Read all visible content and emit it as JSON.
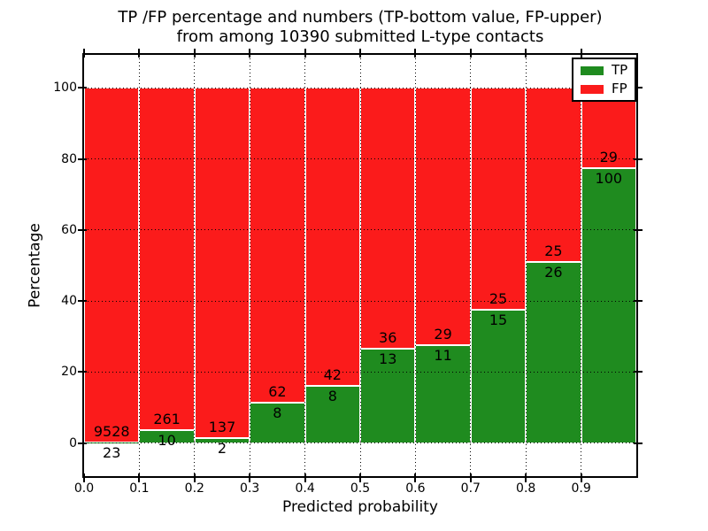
{
  "title": {
    "line1": "TP /FP percentage and numbers (TP-bottom value, FP-upper)",
    "line2": "from among 10390 submitted L-type contacts"
  },
  "axes": {
    "xlabel": "Predicted probability",
    "ylabel": "Percentage"
  },
  "chart_data": {
    "type": "bar",
    "stacked": true,
    "normalized_to_percent": true,
    "title": "TP /FP percentage and numbers (TP-bottom value, FP-upper) from among 10390 submitted L-type contacts",
    "xlabel": "Predicted probability",
    "ylabel": "Percentage",
    "xlim": [
      0.0,
      1.0
    ],
    "ylim": [
      -9.3,
      109.3
    ],
    "xticks": [
      "0.0",
      "0.1",
      "0.2",
      "0.3",
      "0.4",
      "0.5",
      "0.6",
      "0.7",
      "0.8",
      "0.9"
    ],
    "yticks": [
      "0",
      "20",
      "40",
      "60",
      "80",
      "100"
    ],
    "grid": "dotted black, horizontal at y ticks and vertical at x ticks, drawn over bars",
    "legend_position": "upper right",
    "bin_width": 0.1,
    "total_submitted": 10390,
    "bar_edge_color": "#ffffff",
    "label_note": "FP count printed just above TP/FP boundary, TP count just below",
    "bins": [
      {
        "x0": 0.0,
        "x1": 0.1,
        "tp": 23,
        "fp": 9528
      },
      {
        "x0": 0.1,
        "x1": 0.2,
        "tp": 10,
        "fp": 261
      },
      {
        "x0": 0.2,
        "x1": 0.3,
        "tp": 2,
        "fp": 137
      },
      {
        "x0": 0.3,
        "x1": 0.4,
        "tp": 8,
        "fp": 62
      },
      {
        "x0": 0.4,
        "x1": 0.5,
        "tp": 8,
        "fp": 42
      },
      {
        "x0": 0.5,
        "x1": 0.6,
        "tp": 13,
        "fp": 36
      },
      {
        "x0": 0.6,
        "x1": 0.7,
        "tp": 11,
        "fp": 29
      },
      {
        "x0": 0.7,
        "x1": 0.8,
        "tp": 15,
        "fp": 25
      },
      {
        "x0": 0.8,
        "x1": 0.9,
        "tp": 26,
        "fp": 25
      },
      {
        "x0": 0.9,
        "x1": 1.0,
        "tp": 100,
        "fp": 29
      }
    ],
    "series": [
      {
        "name": "TP",
        "color": "#1f8b1f",
        "values": [
          23,
          10,
          2,
          8,
          8,
          13,
          11,
          15,
          26,
          100
        ]
      },
      {
        "name": "FP",
        "color": "#fb1b1b",
        "values": [
          9528,
          261,
          137,
          62,
          42,
          36,
          29,
          25,
          25,
          29
        ]
      }
    ]
  }
}
